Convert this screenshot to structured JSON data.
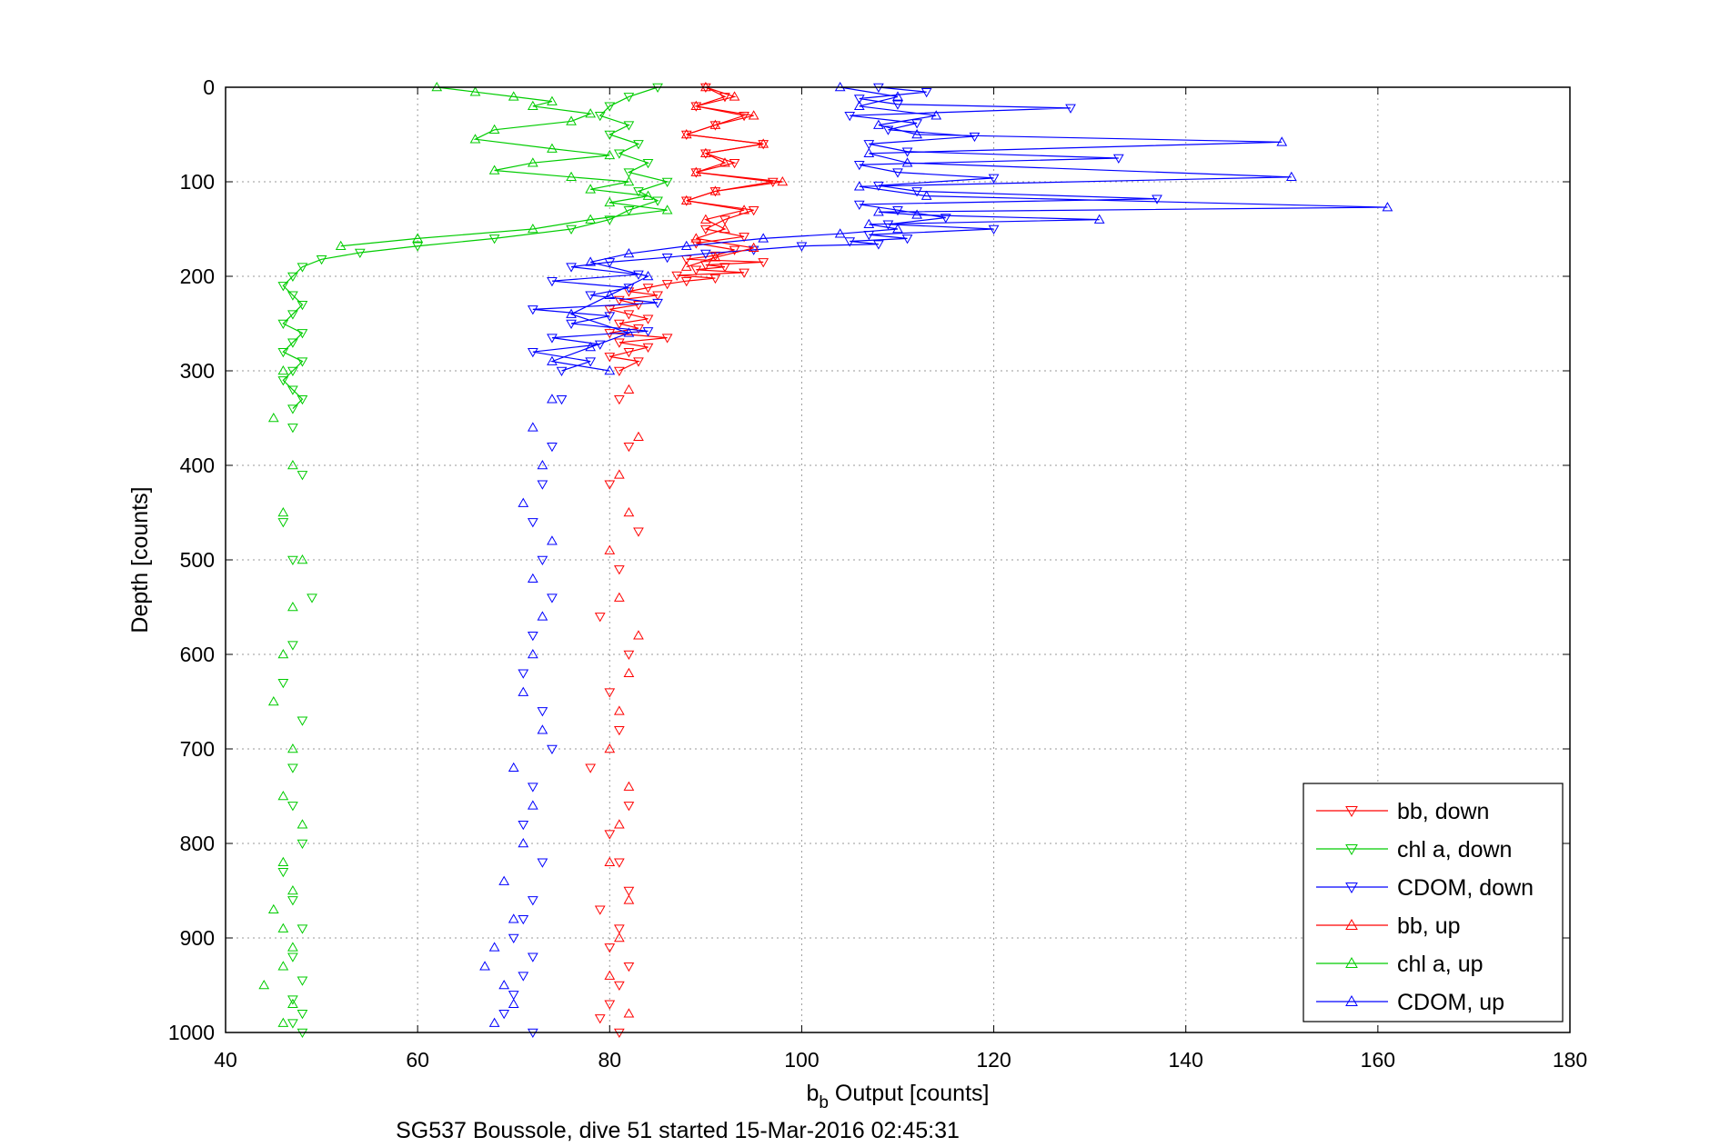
{
  "chart_data": {
    "type": "scatter",
    "xlabel_main": "b",
    "xlabel_sub": "b",
    "xlabel_rest": " Output [counts]",
    "ylabel": "Depth [counts]",
    "caption": "SG537 Boussole, dive 51 started 15-Mar-2016 02:45:31",
    "xlim": [
      40,
      180
    ],
    "ylim": [
      0,
      1000
    ],
    "y_reversed": true,
    "grid": true,
    "legend_position": "bottom-right",
    "xticks": [
      "40",
      "60",
      "80",
      "100",
      "120",
      "140",
      "160",
      "180"
    ],
    "yticks": [
      "0",
      "100",
      "200",
      "300",
      "400",
      "500",
      "600",
      "700",
      "800",
      "900",
      "1000"
    ],
    "series": [
      {
        "name": "bb, down",
        "color": "#ff0000",
        "marker": "triangle-down",
        "segments": [
          {
            "x": [
              90,
              92,
              89,
              94,
              91,
              88,
              96,
              90,
              93,
              89,
              97,
              91,
              88,
              95,
              92,
              90,
              94,
              89,
              93,
              91,
              88,
              96,
              90,
              92,
              89,
              94,
              87,
              91,
              88,
              86,
              84,
              82,
              85,
              81,
              83,
              80,
              82,
              84,
              81,
              83,
              80,
              86,
              81,
              84,
              82,
              80,
              83,
              81
            ],
            "y": [
              0,
              10,
              20,
              30,
              40,
              50,
              60,
              70,
              80,
              90,
              100,
              110,
              120,
              130,
              140,
              150,
              158,
              165,
              172,
              178,
              182,
              185,
              188,
              190,
              193,
              196,
              199,
              202,
              205,
              208,
              212,
              216,
              220,
              225,
              230,
              235,
              240,
              245,
              250,
              255,
              260,
              265,
              270,
              275,
              280,
              285,
              290,
              300
            ]
          }
        ],
        "points": {
          "x": [
            81,
            82,
            80,
            83,
            81,
            79,
            82,
            80,
            81,
            78,
            82,
            80,
            81,
            82,
            79,
            81,
            80,
            82,
            81,
            80,
            79,
            81
          ],
          "y": [
            330,
            380,
            420,
            470,
            510,
            560,
            600,
            640,
            680,
            720,
            760,
            790,
            820,
            850,
            870,
            890,
            910,
            930,
            950,
            970,
            985,
            1000
          ]
        }
      },
      {
        "name": "chl a, down",
        "color": "#00cc00",
        "marker": "triangle-down",
        "segments": [
          {
            "x": [
              85,
              82,
              80,
              79,
              82,
              80,
              83,
              81,
              84,
              82,
              86,
              83,
              85,
              82,
              80,
              76,
              68,
              60,
              54,
              50,
              48,
              47,
              46,
              47,
              48,
              47,
              46,
              48,
              47,
              46,
              48,
              47,
              46,
              47,
              48,
              47
            ],
            "y": [
              0,
              10,
              20,
              30,
              40,
              50,
              60,
              70,
              80,
              90,
              100,
              110,
              120,
              130,
              140,
              150,
              160,
              168,
              175,
              182,
              190,
              200,
              210,
              220,
              230,
              240,
              250,
              260,
              270,
              280,
              290,
              300,
              310,
              320,
              330,
              340
            ]
          }
        ],
        "points": {
          "x": [
            47,
            48,
            46,
            47,
            49,
            47,
            46,
            48,
            47,
            47,
            48,
            46,
            47,
            48,
            47,
            48,
            47,
            48,
            47,
            48
          ],
          "y": [
            360,
            410,
            460,
            500,
            540,
            590,
            630,
            670,
            720,
            760,
            800,
            830,
            860,
            890,
            920,
            945,
            965,
            980,
            990,
            1000
          ]
        }
      },
      {
        "name": "CDOM, down",
        "color": "#0000ff",
        "marker": "triangle-down",
        "segments": [
          {
            "x": [
              108,
              113,
              106,
              110,
              128,
              105,
              112,
              109,
              118,
              107,
              111,
              133,
              106,
              110,
              120,
              108,
              112,
              137,
              106,
              110,
              115,
              109,
              120,
              107,
              111,
              105,
              108,
              100,
              95,
              90,
              86,
              80,
              76,
              83,
              74,
              82,
              78,
              85,
              72,
              80,
              76,
              84,
              74,
              79,
              72,
              78,
              75
            ],
            "y": [
              0,
              5,
              12,
              18,
              22,
              30,
              38,
              45,
              52,
              60,
              68,
              75,
              82,
              90,
              96,
              104,
              110,
              118,
              124,
              130,
              138,
              145,
              150,
              156,
              160,
              163,
              166,
              168,
              172,
              176,
              180,
              185,
              190,
              198,
              205,
              212,
              220,
              228,
              235,
              242,
              250,
              258,
              265,
              272,
              280,
              290,
              300
            ]
          }
        ],
        "points": {
          "x": [
            75,
            74,
            73,
            72,
            73,
            74,
            72,
            71,
            73,
            74,
            72,
            71,
            73,
            72,
            71,
            70,
            72,
            71,
            70,
            69,
            72
          ],
          "y": [
            330,
            380,
            420,
            460,
            500,
            540,
            580,
            620,
            660,
            700,
            740,
            780,
            820,
            860,
            880,
            900,
            920,
            940,
            960,
            980,
            1000
          ]
        }
      },
      {
        "name": "bb, up",
        "color": "#ff0000",
        "marker": "triangle-up",
        "segments": [
          {
            "x": [
              90,
              93,
              89,
              95,
              91,
              88,
              96,
              90,
              92,
              89,
              98,
              91,
              88,
              94,
              90,
              92,
              89,
              95,
              91,
              88
            ],
            "y": [
              0,
              10,
              20,
              30,
              40,
              50,
              60,
              70,
              80,
              90,
              100,
              110,
              120,
              130,
              140,
              150,
              160,
              170,
              180,
              190
            ]
          }
        ],
        "points": {
          "x": [
            82,
            83,
            81,
            82,
            80,
            81,
            83,
            82,
            81,
            80,
            82,
            81,
            80,
            82,
            81,
            80,
            82
          ],
          "y": [
            320,
            370,
            410,
            450,
            490,
            540,
            580,
            620,
            660,
            700,
            740,
            780,
            820,
            860,
            900,
            940,
            980
          ]
        }
      },
      {
        "name": "chl a, up",
        "color": "#00cc00",
        "marker": "triangle-up",
        "segments": [
          {
            "x": [
              62,
              66,
              70,
              74,
              72,
              78,
              76,
              68,
              66,
              74,
              80,
              72,
              68,
              76,
              82,
              78,
              84,
              80,
              86,
              78,
              72,
              60,
              52
            ],
            "y": [
              0,
              5,
              10,
              15,
              20,
              28,
              36,
              45,
              55,
              65,
              72,
              80,
              88,
              95,
              100,
              108,
              115,
              122,
              130,
              140,
              150,
              160,
              168
            ]
          }
        ],
        "points": {
          "x": [
            46,
            45,
            47,
            46,
            48,
            47,
            46,
            45,
            47,
            46,
            48,
            46,
            47,
            45,
            46,
            47,
            46,
            44,
            47,
            46
          ],
          "y": [
            300,
            350,
            400,
            450,
            500,
            550,
            600,
            650,
            700,
            750,
            780,
            820,
            850,
            870,
            890,
            910,
            930,
            950,
            970,
            990
          ]
        }
      },
      {
        "name": "CDOM, up",
        "color": "#0000ff",
        "marker": "triangle-up",
        "segments": [
          {
            "x": [
              104,
              110,
              106,
              114,
              108,
              112,
              150,
              107,
              111,
              151,
              106,
              113,
              161,
              108,
              112,
              131,
              107,
              110,
              104,
              96,
              88,
              82,
              78,
              84,
              80,
              76,
              82,
              78,
              74,
              80
            ],
            "y": [
              0,
              10,
              20,
              30,
              40,
              50,
              58,
              70,
              80,
              95,
              105,
              115,
              127,
              132,
              135,
              140,
              145,
              150,
              155,
              160,
              168,
              176,
              185,
              200,
              220,
              240,
              260,
              275,
              290,
              300
            ]
          }
        ],
        "points": {
          "x": [
            74,
            72,
            73,
            71,
            74,
            72,
            73,
            72,
            71,
            73,
            70,
            72,
            71,
            69,
            70,
            68,
            67,
            69,
            70,
            68
          ],
          "y": [
            330,
            360,
            400,
            440,
            480,
            520,
            560,
            600,
            640,
            680,
            720,
            760,
            800,
            840,
            880,
            910,
            930,
            950,
            970,
            990
          ]
        }
      }
    ]
  }
}
